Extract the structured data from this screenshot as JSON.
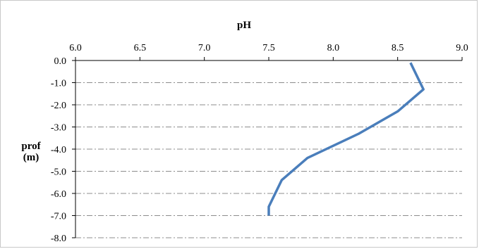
{
  "chart_data": {
    "type": "line",
    "title": "pH",
    "xlabel": "pH",
    "ylabel_line1": "prof",
    "ylabel_line2": "(m)",
    "xlim": [
      6.0,
      9.0
    ],
    "ylim": [
      -8.0,
      0.0
    ],
    "x_ticks": [
      "6.0",
      "6.5",
      "7.0",
      "7.5",
      "8.0",
      "8.5",
      "9.0"
    ],
    "y_ticks": [
      "0.0",
      "-1.0",
      "-2.0",
      "-3.0",
      "-4.0",
      "-5.0",
      "-6.0",
      "-7.0",
      "-8.0"
    ],
    "x_axis_position": "top",
    "grid": "horizontal dash-dot",
    "series": [
      {
        "color": "#4a7ebb",
        "points": [
          {
            "x": 8.6,
            "y": -0.1
          },
          {
            "x": 8.7,
            "y": -1.3
          },
          {
            "x": 8.5,
            "y": -2.3
          },
          {
            "x": 8.2,
            "y": -3.3
          },
          {
            "x": 7.8,
            "y": -4.4
          },
          {
            "x": 7.6,
            "y": -5.4
          },
          {
            "x": 7.5,
            "y": -6.6
          },
          {
            "x": 7.5,
            "y": -7.0
          }
        ]
      }
    ]
  }
}
